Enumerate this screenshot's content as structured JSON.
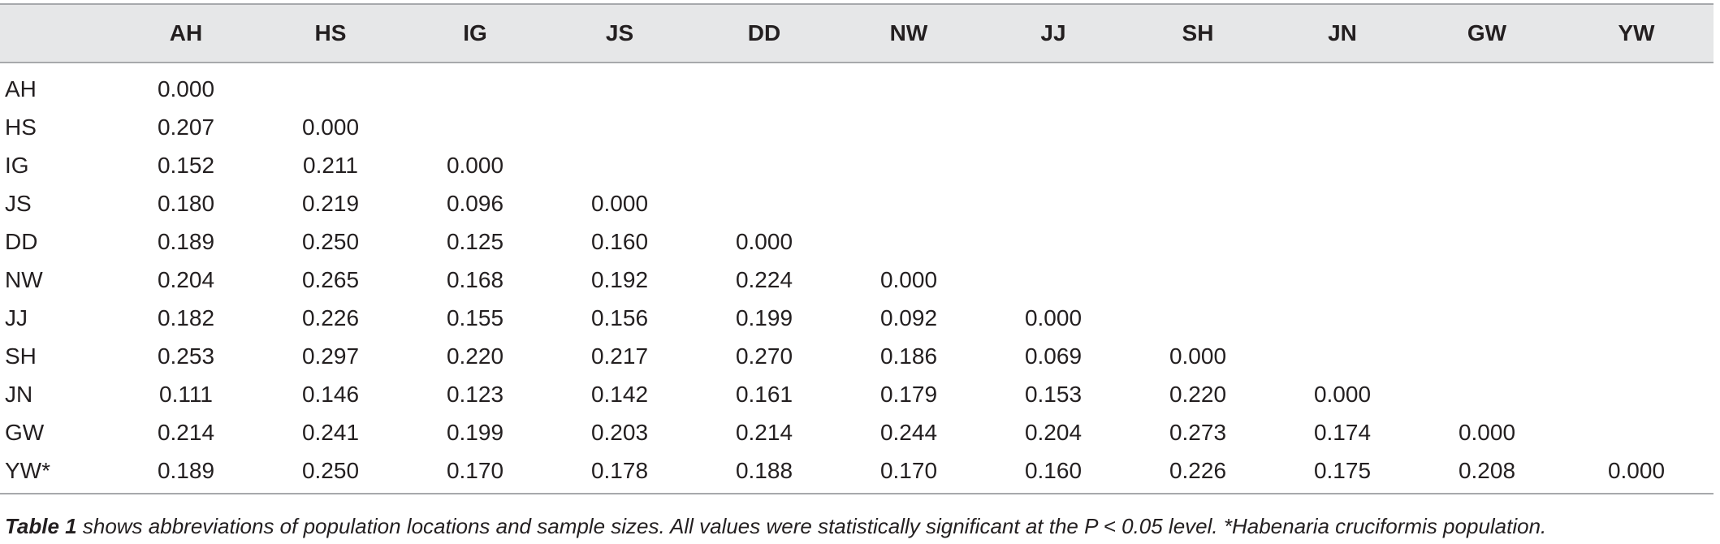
{
  "table": {
    "columns": [
      "AH",
      "HS",
      "IG",
      "JS",
      "DD",
      "NW",
      "JJ",
      "SH",
      "JN",
      "GW",
      "YW"
    ],
    "rows": [
      {
        "label": "AH",
        "values": [
          "0.000"
        ]
      },
      {
        "label": "HS",
        "values": [
          "0.207",
          "0.000"
        ]
      },
      {
        "label": "IG",
        "values": [
          "0.152",
          "0.211",
          "0.000"
        ]
      },
      {
        "label": "JS",
        "values": [
          "0.180",
          "0.219",
          "0.096",
          "0.000"
        ]
      },
      {
        "label": "DD",
        "values": [
          "0.189",
          "0.250",
          "0.125",
          "0.160",
          "0.000"
        ]
      },
      {
        "label": "NW",
        "values": [
          "0.204",
          "0.265",
          "0.168",
          "0.192",
          "0.224",
          "0.000"
        ]
      },
      {
        "label": "JJ",
        "values": [
          "0.182",
          "0.226",
          "0.155",
          "0.156",
          "0.199",
          "0.092",
          "0.000"
        ]
      },
      {
        "label": "SH",
        "values": [
          "0.253",
          "0.297",
          "0.220",
          "0.217",
          "0.270",
          "0.186",
          "0.069",
          "0.000"
        ]
      },
      {
        "label": "JN",
        "values": [
          "0.111",
          "0.146",
          "0.123",
          "0.142",
          "0.161",
          "0.179",
          "0.153",
          "0.220",
          "0.000"
        ]
      },
      {
        "label": "GW",
        "values": [
          "0.214",
          "0.241",
          "0.199",
          "0.203",
          "0.214",
          "0.244",
          "0.204",
          "0.273",
          "0.174",
          "0.000"
        ]
      },
      {
        "label": "YW*",
        "values": [
          "0.189",
          "0.250",
          "0.170",
          "0.178",
          "0.188",
          "0.170",
          "0.160",
          "0.226",
          "0.175",
          "0.208",
          "0.000"
        ]
      }
    ]
  },
  "footnote": {
    "ref": "Table 1",
    "text": " shows abbreviations of population locations and sample sizes. All values were statistically significant at the P < 0.05 level. *Habenaria cruciformis population."
  },
  "colors": {
    "header_background": "#e6e7e8",
    "rule": "#a7a9ac",
    "text": "#231f20"
  }
}
